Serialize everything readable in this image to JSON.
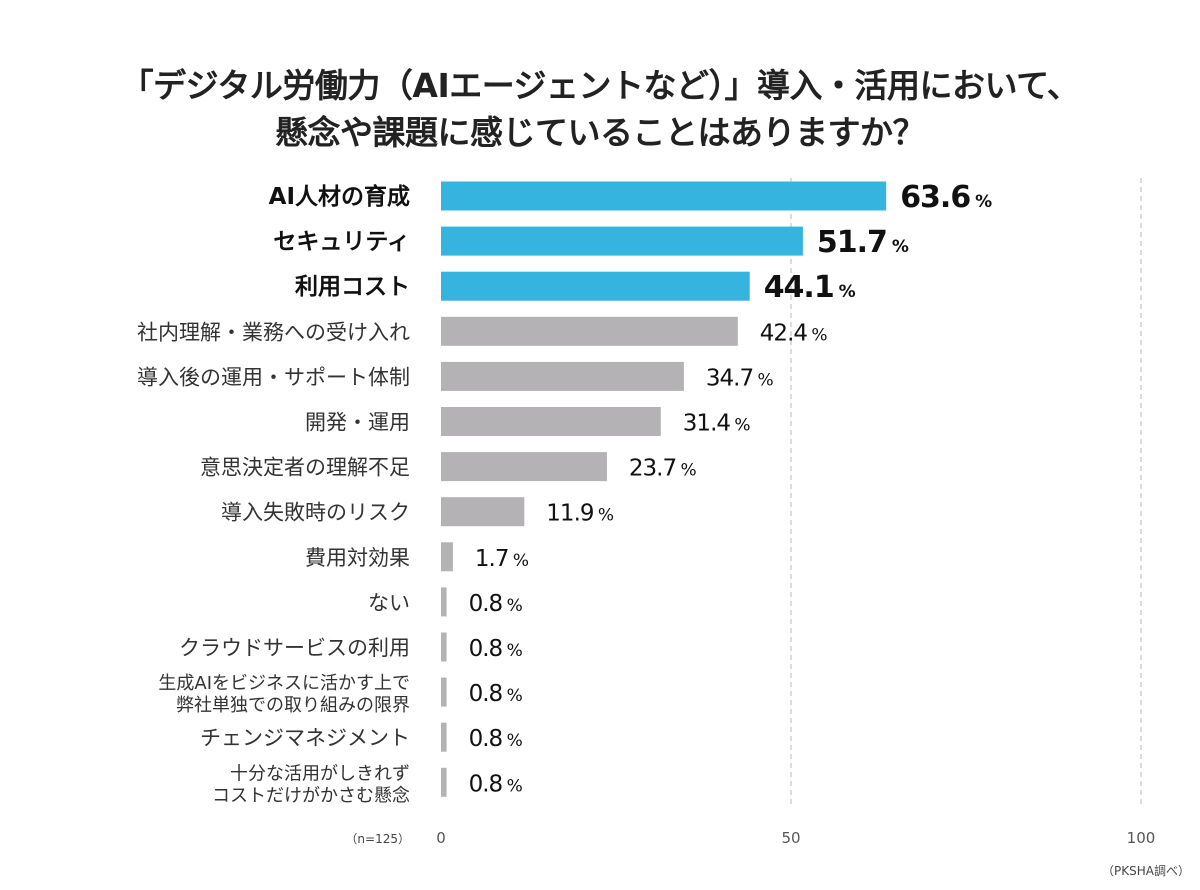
{
  "chart_data": {
    "type": "bar",
    "orientation": "horizontal",
    "title": [
      "「デジタル労働力（AIエージェントなど）」導入・活用において、",
      "懸念や課題に感じていることはありますか？"
    ],
    "categories": [
      [
        "AI人材の育成"
      ],
      [
        "セキュリティ"
      ],
      [
        "利用コスト"
      ],
      [
        "社内理解・業務への受け入れ"
      ],
      [
        "導入後の運用・サポート体制"
      ],
      [
        "開発・運用"
      ],
      [
        "意思決定者の理解不足"
      ],
      [
        "導入失敗時のリスク"
      ],
      [
        "費用対効果"
      ],
      [
        "ない"
      ],
      [
        "クラウドサービスの利用"
      ],
      [
        "生成AIをビジネスに活かす上で",
        "弊社単独での取り組みの限界"
      ],
      [
        "チェンジマネジメント"
      ],
      [
        "十分な活用がしきれず",
        "コストだけがかさむ懸念"
      ]
    ],
    "values": [
      63.6,
      51.7,
      44.1,
      42.4,
      34.7,
      31.4,
      23.7,
      11.9,
      1.7,
      0.8,
      0.8,
      0.8,
      0.8,
      0.8
    ],
    "highlighted_count": 3,
    "unit": "%",
    "xlim": [
      0,
      100
    ],
    "xticks": [
      "0",
      "50",
      "100"
    ],
    "grid": "dashed vertical at 50 and 100",
    "sample_note": "（n=125）",
    "source": "（PKSHA調べ）",
    "colors": {
      "highlight": "#35b4e0",
      "default": "#b4b2b4",
      "grid": "#c8c8c8"
    }
  }
}
